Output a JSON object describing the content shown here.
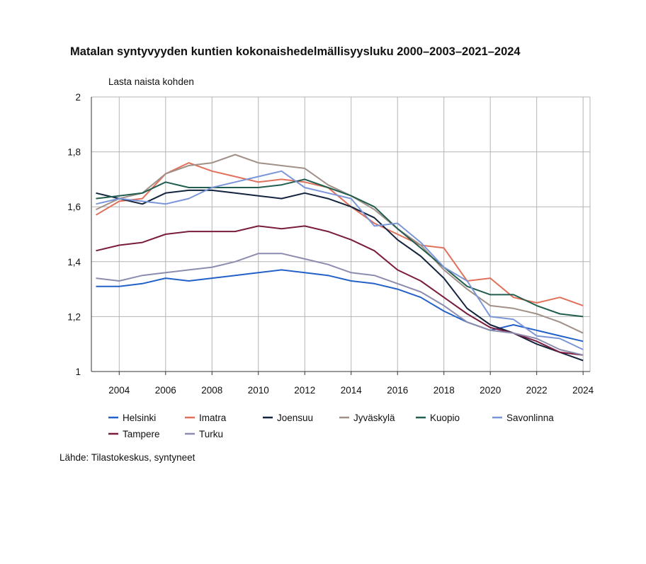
{
  "title": "Matalan syntyvyyden kuntien kokonaishedelmällisyysluku 2000–2003–2021–2024",
  "ylabel": "Lasta naista kohden",
  "source": "Lähde: Tilastokeskus, syntyneet",
  "chart_data": {
    "type": "line",
    "title": "Matalan syntyvyyden kuntien kokonaishedelmällisyysluku 2000–2003–2021–2024",
    "xlabel": "",
    "ylabel": "Lasta naista kohden",
    "x": [
      2003,
      2004,
      2005,
      2006,
      2007,
      2008,
      2009,
      2010,
      2011,
      2012,
      2013,
      2014,
      2015,
      2016,
      2017,
      2018,
      2019,
      2020,
      2021,
      2022,
      2023,
      2024
    ],
    "x_ticks": [
      "2004",
      "2006",
      "2008",
      "2010",
      "2012",
      "2014",
      "2016",
      "2018",
      "2020",
      "2022",
      "2024"
    ],
    "x_tick_values": [
      2004,
      2006,
      2008,
      2010,
      2012,
      2014,
      2016,
      2018,
      2020,
      2022,
      2024
    ],
    "y_ticks": [
      "1",
      "1,2",
      "1,4",
      "1,6",
      "1,8",
      "2"
    ],
    "y_tick_values": [
      1,
      1.2,
      1.4,
      1.6,
      1.8,
      2
    ],
    "ylim": [
      1,
      2
    ],
    "xlim": [
      2002.8,
      2024.3
    ],
    "grid": true,
    "legend_position": "bottom",
    "series": [
      {
        "name": "Helsinki",
        "color": "#2361c8",
        "values": [
          1.31,
          1.31,
          1.32,
          1.34,
          1.33,
          1.34,
          1.35,
          1.36,
          1.37,
          1.36,
          1.35,
          1.33,
          1.32,
          1.3,
          1.27,
          1.22,
          1.18,
          1.15,
          1.17,
          1.15,
          1.13,
          1.11
        ]
      },
      {
        "name": "Imatra",
        "color": "#e0705a",
        "values": [
          1.57,
          1.62,
          1.63,
          1.72,
          1.76,
          1.73,
          1.71,
          1.69,
          1.7,
          1.69,
          1.67,
          1.6,
          1.54,
          1.5,
          1.46,
          1.45,
          1.33,
          1.34,
          1.27,
          1.25,
          1.27,
          1.24
        ]
      },
      {
        "name": "Joensuu",
        "color": "#13243f",
        "values": [
          1.65,
          1.63,
          1.61,
          1.65,
          1.66,
          1.66,
          1.65,
          1.64,
          1.63,
          1.65,
          1.63,
          1.6,
          1.56,
          1.48,
          1.42,
          1.34,
          1.23,
          1.17,
          1.14,
          1.1,
          1.07,
          1.04
        ]
      },
      {
        "name": "Jyväskylä",
        "color": "#a09088",
        "values": [
          1.59,
          1.63,
          1.65,
          1.72,
          1.75,
          1.76,
          1.79,
          1.76,
          1.75,
          1.74,
          1.68,
          1.64,
          1.59,
          1.52,
          1.46,
          1.37,
          1.3,
          1.24,
          1.23,
          1.21,
          1.18,
          1.14
        ]
      },
      {
        "name": "Kuopio",
        "color": "#225e4f",
        "values": [
          1.63,
          1.64,
          1.65,
          1.69,
          1.67,
          1.67,
          1.67,
          1.67,
          1.68,
          1.7,
          1.67,
          1.64,
          1.6,
          1.52,
          1.45,
          1.38,
          1.31,
          1.28,
          1.28,
          1.24,
          1.21,
          1.2
        ]
      },
      {
        "name": "Savonlinna",
        "color": "#7b96d8",
        "values": [
          1.61,
          1.63,
          1.62,
          1.61,
          1.63,
          1.67,
          1.69,
          1.71,
          1.73,
          1.67,
          1.65,
          1.63,
          1.53,
          1.54,
          1.47,
          1.38,
          1.33,
          1.2,
          1.19,
          1.13,
          1.12,
          1.08
        ]
      },
      {
        "name": "Tampere",
        "color": "#7a1c3e",
        "values": [
          1.44,
          1.46,
          1.47,
          1.5,
          1.51,
          1.51,
          1.51,
          1.53,
          1.52,
          1.53,
          1.51,
          1.48,
          1.44,
          1.37,
          1.33,
          1.27,
          1.21,
          1.16,
          1.14,
          1.11,
          1.07,
          1.06
        ]
      },
      {
        "name": "Turku",
        "color": "#8c8caf",
        "values": [
          1.34,
          1.33,
          1.35,
          1.36,
          1.37,
          1.38,
          1.4,
          1.43,
          1.43,
          1.41,
          1.39,
          1.36,
          1.35,
          1.32,
          1.29,
          1.24,
          1.18,
          1.15,
          1.14,
          1.12,
          1.08,
          1.06
        ]
      }
    ]
  }
}
